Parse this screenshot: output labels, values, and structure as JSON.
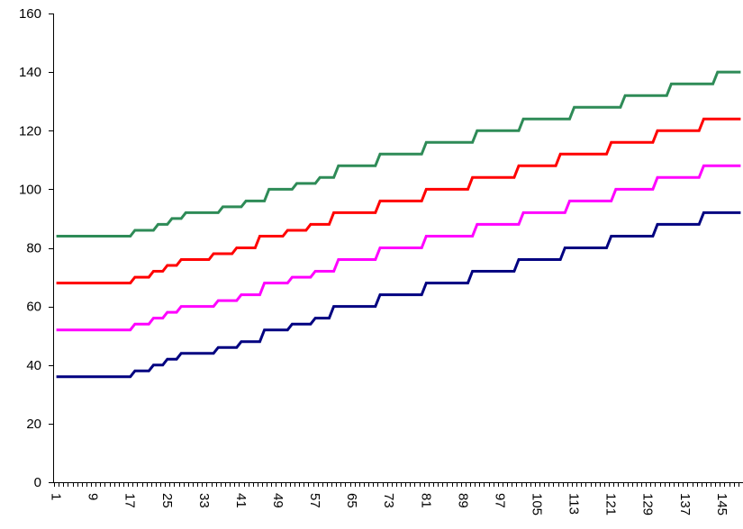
{
  "chart_data": {
    "type": "line",
    "title": "",
    "xlabel": "",
    "ylabel": "",
    "x_range": [
      1,
      149
    ],
    "x_tick_labels": [
      "1",
      "9",
      "17",
      "25",
      "33",
      "41",
      "49",
      "57",
      "65",
      "73",
      "81",
      "89",
      "97",
      "105",
      "113",
      "121",
      "129",
      "137",
      "145"
    ],
    "ylim": [
      0,
      160
    ],
    "y_ticks": [
      0,
      20,
      40,
      60,
      80,
      100,
      120,
      140,
      160
    ],
    "grid": false,
    "legend": "none",
    "series": [
      {
        "color": "#2E8B57",
        "steps": [
          [
            1,
            84
          ],
          [
            18,
            86
          ],
          [
            23,
            88
          ],
          [
            26,
            90
          ],
          [
            29,
            92
          ],
          [
            37,
            94
          ],
          [
            42,
            96
          ],
          [
            47,
            100
          ],
          [
            53,
            102
          ],
          [
            58,
            104
          ],
          [
            62,
            108
          ],
          [
            71,
            112
          ],
          [
            81,
            116
          ],
          [
            92,
            120
          ],
          [
            102,
            124
          ],
          [
            113,
            128
          ],
          [
            124,
            132
          ],
          [
            134,
            136
          ],
          [
            144,
            140
          ]
        ]
      },
      {
        "color": "#FF0000",
        "steps": [
          [
            1,
            68
          ],
          [
            18,
            70
          ],
          [
            22,
            72
          ],
          [
            25,
            74
          ],
          [
            28,
            76
          ],
          [
            35,
            78
          ],
          [
            40,
            80
          ],
          [
            45,
            84
          ],
          [
            51,
            86
          ],
          [
            56,
            88
          ],
          [
            61,
            92
          ],
          [
            71,
            96
          ],
          [
            81,
            100
          ],
          [
            91,
            104
          ],
          [
            101,
            108
          ],
          [
            110,
            112
          ],
          [
            121,
            116
          ],
          [
            131,
            120
          ],
          [
            141,
            124
          ]
        ]
      },
      {
        "color": "#FF00FF",
        "steps": [
          [
            1,
            52
          ],
          [
            18,
            54
          ],
          [
            22,
            56
          ],
          [
            25,
            58
          ],
          [
            28,
            60
          ],
          [
            36,
            62
          ],
          [
            41,
            64
          ],
          [
            46,
            68
          ],
          [
            52,
            70
          ],
          [
            57,
            72
          ],
          [
            62,
            76
          ],
          [
            71,
            80
          ],
          [
            81,
            84
          ],
          [
            92,
            88
          ],
          [
            102,
            92
          ],
          [
            112,
            96
          ],
          [
            122,
            100
          ],
          [
            131,
            104
          ],
          [
            141,
            108
          ]
        ]
      },
      {
        "color": "#000080",
        "steps": [
          [
            1,
            36
          ],
          [
            18,
            38
          ],
          [
            22,
            40
          ],
          [
            25,
            42
          ],
          [
            28,
            44
          ],
          [
            36,
            46
          ],
          [
            41,
            48
          ],
          [
            46,
            52
          ],
          [
            52,
            54
          ],
          [
            57,
            56
          ],
          [
            61,
            60
          ],
          [
            71,
            64
          ],
          [
            81,
            68
          ],
          [
            91,
            72
          ],
          [
            101,
            76
          ],
          [
            111,
            80
          ],
          [
            121,
            84
          ],
          [
            131,
            88
          ],
          [
            141,
            92
          ]
        ]
      }
    ]
  }
}
